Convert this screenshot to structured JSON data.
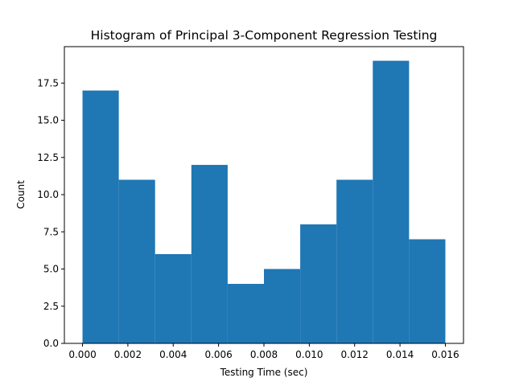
{
  "chart_data": {
    "type": "bar",
    "title": "Histogram of Principal 3-Component Regression Testing",
    "xlabel": "Testing Time (sec)",
    "ylabel": "Count",
    "bins": [
      {
        "start": 0.0,
        "end": 0.0016,
        "count": 17
      },
      {
        "start": 0.0016,
        "end": 0.0032,
        "count": 11
      },
      {
        "start": 0.0032,
        "end": 0.0048,
        "count": 6
      },
      {
        "start": 0.0048,
        "end": 0.0064,
        "count": 12
      },
      {
        "start": 0.0064,
        "end": 0.008,
        "count": 4
      },
      {
        "start": 0.008,
        "end": 0.0096,
        "count": 5
      },
      {
        "start": 0.0096,
        "end": 0.0112,
        "count": 8
      },
      {
        "start": 0.0112,
        "end": 0.0128,
        "count": 11
      },
      {
        "start": 0.0128,
        "end": 0.0144,
        "count": 19
      },
      {
        "start": 0.0144,
        "end": 0.016,
        "count": 7
      }
    ],
    "xlim": [
      -0.0008,
      0.0168
    ],
    "ylim": [
      0,
      19.95
    ],
    "xticks": [
      0.0,
      0.002,
      0.004,
      0.006,
      0.008,
      0.01,
      0.012,
      0.014,
      0.016
    ],
    "xtick_labels": [
      "0.000",
      "0.002",
      "0.004",
      "0.006",
      "0.008",
      "0.010",
      "0.012",
      "0.014",
      "0.016"
    ],
    "yticks": [
      0.0,
      2.5,
      5.0,
      7.5,
      10.0,
      12.5,
      15.0,
      17.5
    ],
    "ytick_labels": [
      "0.0",
      "2.5",
      "5.0",
      "7.5",
      "10.0",
      "12.5",
      "15.0",
      "17.5"
    ],
    "grid": false,
    "bar_color": "#1f77b4"
  }
}
